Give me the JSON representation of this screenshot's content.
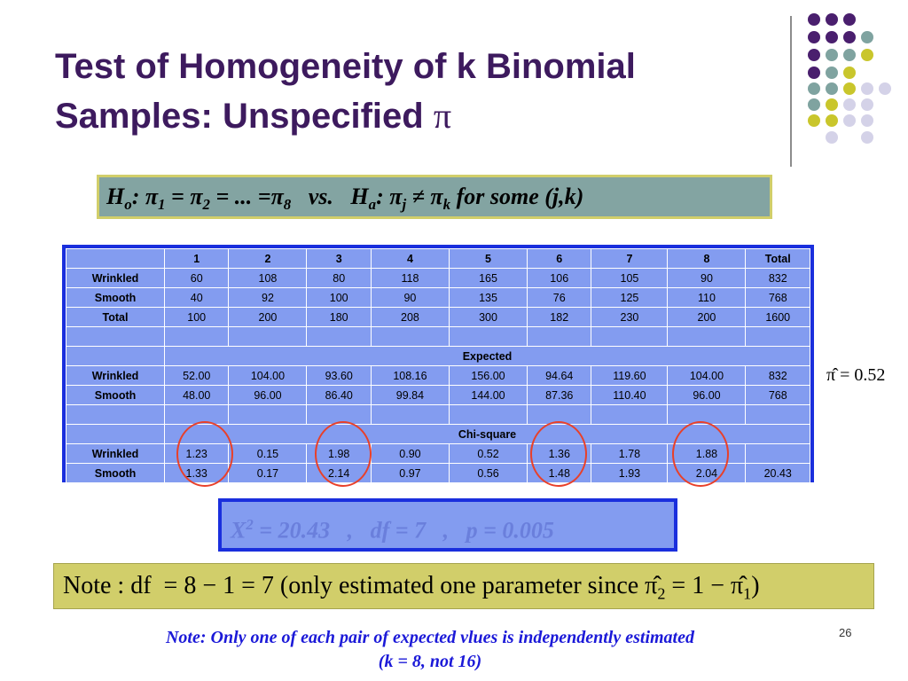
{
  "slide": {
    "title_line1": "Test of Homogeneity of k Binomial",
    "title_line2": "Samples: Unspecified",
    "title_symbol": "π",
    "page_number": "26"
  },
  "hypothesis": {
    "h0_label": "H",
    "h0_sub": "o",
    "h0_rest": ": π",
    "pi1_sub": "1",
    "eq1": " = π",
    "pi2_sub": "2",
    "eq2": " = ... =π",
    "pi8_sub": "8",
    "vs": "   vs.   H",
    "ha_sub": "a",
    "ha_rest": ": π",
    "pij_sub": "j",
    "neq": " ≠ π",
    "pik_sub": "k",
    "tail": " for some (j,k)"
  },
  "table": {
    "header": [
      "",
      "1",
      "2",
      "3",
      "4",
      "5",
      "6",
      "7",
      "8",
      "Total"
    ],
    "observed": [
      [
        "Wrinkled",
        "60",
        "108",
        "80",
        "118",
        "165",
        "106",
        "105",
        "90",
        "832"
      ],
      [
        "Smooth",
        "40",
        "92",
        "100",
        "90",
        "135",
        "76",
        "125",
        "110",
        "768"
      ],
      [
        "Total",
        "100",
        "200",
        "180",
        "208",
        "300",
        "182",
        "230",
        "200",
        "1600"
      ]
    ],
    "expected_label": "Expected",
    "expected": [
      [
        "Wrinkled",
        "52.00",
        "104.00",
        "93.60",
        "108.16",
        "156.00",
        "94.64",
        "119.60",
        "104.00",
        "832"
      ],
      [
        "Smooth",
        "48.00",
        "96.00",
        "86.40",
        "99.84",
        "144.00",
        "87.36",
        "110.40",
        "96.00",
        "768"
      ]
    ],
    "chisq_label": "Chi-square",
    "chisq": [
      [
        "Wrinkled",
        "1.23",
        "0.15",
        "1.98",
        "0.90",
        "0.52",
        "1.36",
        "1.78",
        "1.88",
        ""
      ],
      [
        "Smooth",
        "1.33",
        "0.17",
        "2.14",
        "0.97",
        "0.56",
        "1.48",
        "1.93",
        "2.04",
        "20.43"
      ]
    ]
  },
  "pi_hat": "π̂ = 0.52",
  "stat_line": {
    "x": "X",
    "sup": "2",
    "rest": " = 20.43   ,   df = 7   ,   p = 0.005"
  },
  "note_line": {
    "text_a": "Note : df  = 8 − 1 = 7 (only estimated one parameter since π̂",
    "sub_a": "2",
    "text_b": " = 1 − π̂",
    "sub_b": "1",
    "text_c": ")"
  },
  "footnote": {
    "line1": "Note: Only one of each pair of expected vlues is independently estimated",
    "line2": "(k = 8, not 16)"
  },
  "colors": {
    "title": "#3d1a5e",
    "dot_purple": "#4a1f6e",
    "dot_teal": "#7fa3a0",
    "dot_yellow": "#c9c62c",
    "dot_lavender": "#d4d2e8",
    "table_bg": "#839cf0",
    "table_border": "#1a2fdd",
    "circle": "#e8402a",
    "note_bg": "#d1ce6a",
    "footnote": "#1b19d8"
  }
}
